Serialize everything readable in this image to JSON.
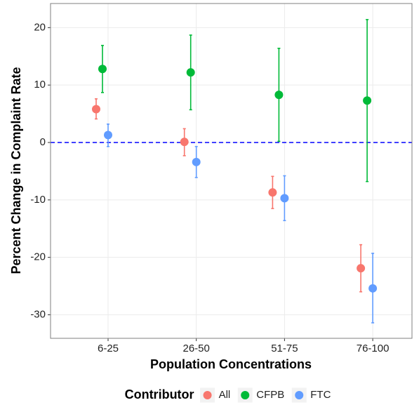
{
  "chart_data": {
    "type": "dot-errorbar",
    "x_label": "Population Concentrations",
    "y_label": "Percent Change in Complaint Rate",
    "categories": [
      "6-25",
      "26-50",
      "51-75",
      "76-100"
    ],
    "series": [
      {
        "name": "All",
        "color": "#F8766D",
        "values": [
          5.8,
          0.1,
          -8.7,
          -21.9
        ],
        "lower": [
          4.1,
          -2.3,
          -11.5,
          -26.0
        ],
        "upper": [
          7.6,
          2.4,
          -5.9,
          -17.8
        ]
      },
      {
        "name": "CFPB",
        "color": "#00BA38",
        "values": [
          12.8,
          12.2,
          8.3,
          7.3
        ],
        "lower": [
          8.7,
          5.7,
          0.2,
          -6.8
        ],
        "upper": [
          16.9,
          18.7,
          16.4,
          21.4
        ]
      },
      {
        "name": "FTC",
        "color": "#619CFF",
        "values": [
          1.3,
          -3.4,
          -9.7,
          -25.4
        ],
        "lower": [
          -0.7,
          -6.1,
          -13.6,
          -31.4
        ],
        "upper": [
          3.2,
          -0.7,
          -5.8,
          -19.3
        ]
      }
    ],
    "legend_title": "Contributor",
    "legend_position": "bottom",
    "reference_line": 0,
    "reference_line_color": "#0000FF",
    "ylim": [
      -34.1,
      24.2
    ],
    "yticks": [
      -30,
      -20,
      -10,
      0,
      10,
      20
    ],
    "grid": true
  }
}
